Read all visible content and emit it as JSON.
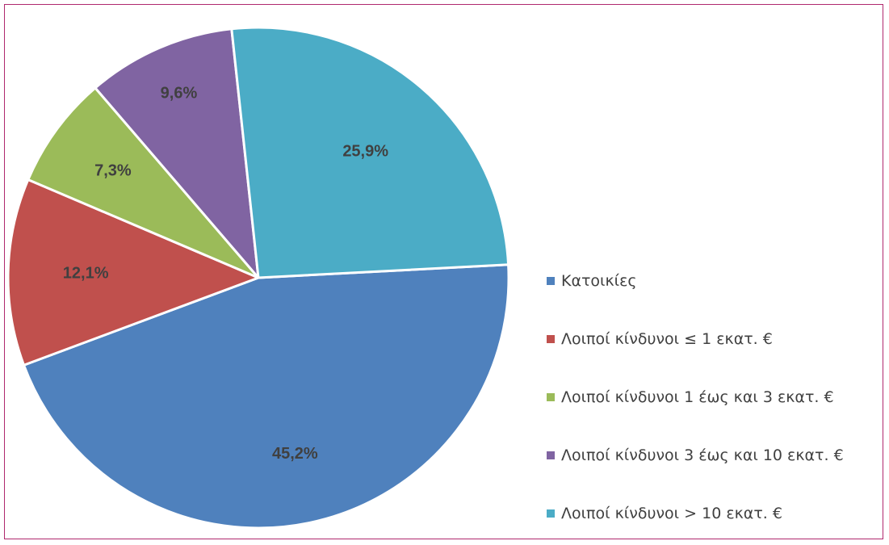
{
  "chart_data": {
    "type": "pie",
    "title": "",
    "categories": [
      "Κατοικίες",
      "Λοιποί κίνδυνοι ≤ 1 εκατ. €",
      "Λοιποί κίνδυνοι 1 έως και 3 εκατ. €",
      "Λοιποί κίνδυνοι 3 έως και 10 εκατ. €",
      "Λοιποί κίνδυνοι > 10 εκατ. €"
    ],
    "values": [
      45.2,
      12.1,
      7.3,
      9.6,
      25.9
    ],
    "data_labels": [
      "45,2%",
      "12,1%",
      "7,3%",
      "9,6%",
      "25,9%"
    ],
    "colors": [
      "#4f81bd",
      "#c0504d",
      "#9bbb59",
      "#8064a2",
      "#4bacc6"
    ],
    "legend_position": "right"
  }
}
